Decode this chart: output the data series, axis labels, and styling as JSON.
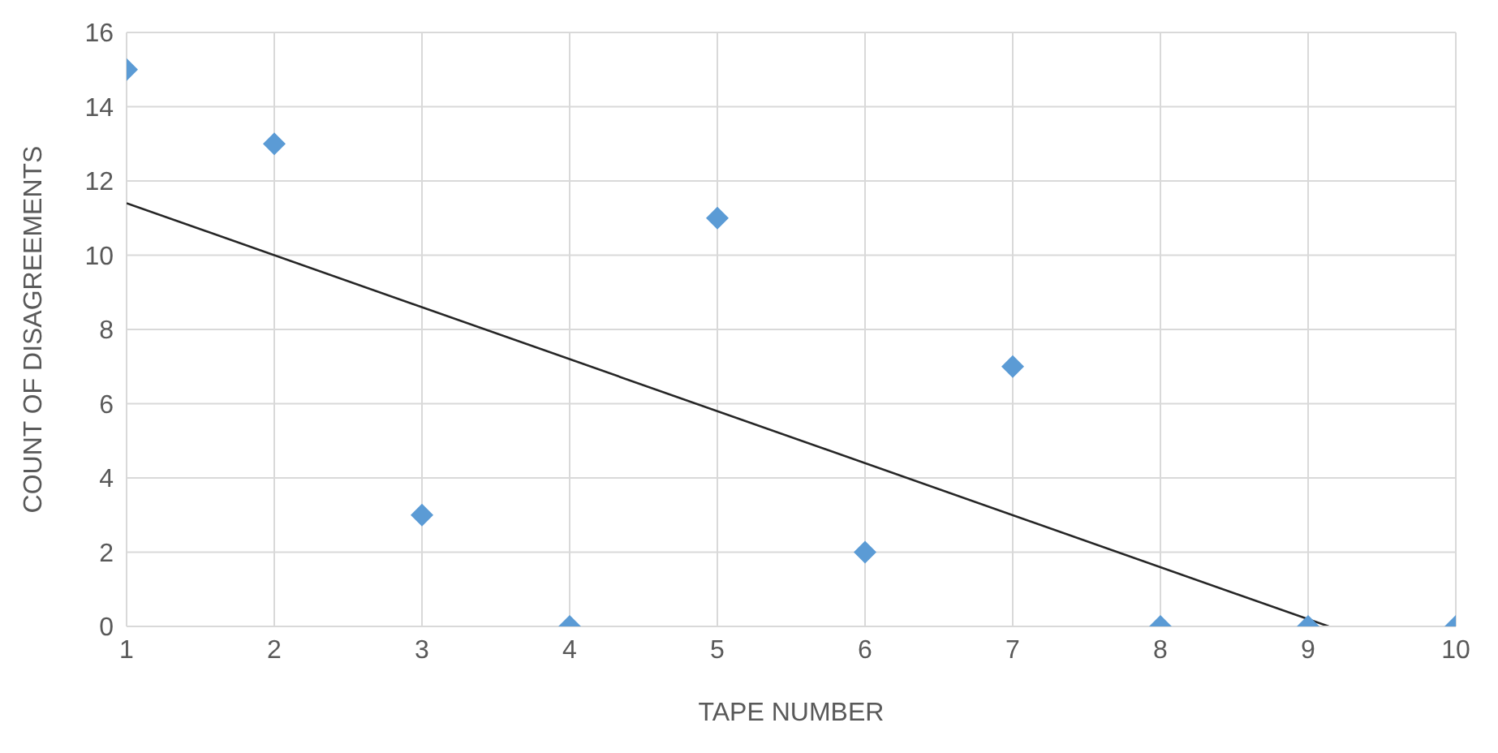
{
  "chart_data": {
    "type": "scatter",
    "xlabel": "TAPE NUMBER",
    "ylabel": "COUNT OF DISAGREEMENTS",
    "xlim": [
      1,
      10
    ],
    "ylim": [
      0,
      16
    ],
    "xticks": [
      1,
      2,
      3,
      4,
      5,
      6,
      7,
      8,
      9,
      10
    ],
    "yticks": [
      0,
      2,
      4,
      6,
      8,
      10,
      12,
      14,
      16
    ],
    "grid": true,
    "marker": "diamond",
    "series": [
      {
        "color": "#5b9bd5",
        "x": [
          1,
          2,
          3,
          4,
          5,
          6,
          7,
          8,
          9,
          10
        ],
        "values": [
          15,
          13,
          3,
          0,
          11,
          2,
          7,
          0,
          0,
          0
        ]
      },
      {
        "type": "line",
        "color": "#262626",
        "line_style": "solid",
        "marker": "none",
        "x": [
          1,
          9.14
        ],
        "values": [
          11.4,
          0
        ]
      }
    ]
  }
}
